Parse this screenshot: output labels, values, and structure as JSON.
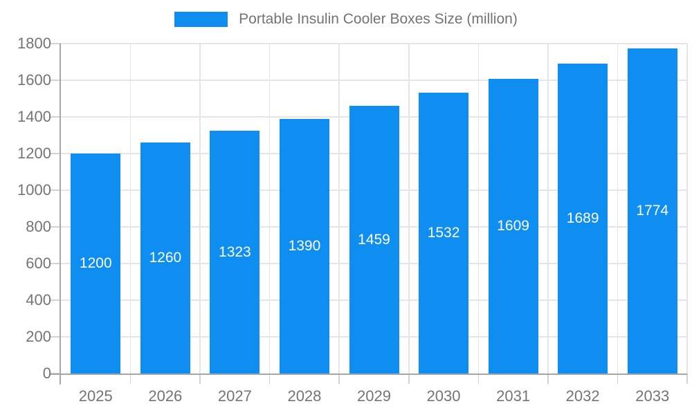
{
  "chart_data": {
    "type": "bar",
    "title": "Portable Insulin Cooler Boxes Size (million)",
    "categories": [
      "2025",
      "2026",
      "2027",
      "2028",
      "2029",
      "2030",
      "2031",
      "2032",
      "2033"
    ],
    "values": [
      1200,
      1260,
      1323,
      1390,
      1459,
      1532,
      1609,
      1689,
      1774
    ],
    "value_labels": [
      "1200",
      "1260",
      "1323",
      "1390",
      "1459",
      "1532",
      "1609",
      "1689",
      "1774"
    ],
    "ylim": [
      0,
      1800
    ],
    "ytick_step": 200,
    "ytick_labels": [
      "0",
      "200",
      "400",
      "600",
      "800",
      "1000",
      "1200",
      "1400",
      "1600",
      "1800"
    ],
    "legend_position": "top",
    "grid": "on",
    "colors": {
      "bar": "#0d8ef0",
      "bar_value_text": "#ffffff",
      "axis": "#a6a6a6",
      "gridline": "#e5e5e5",
      "tick": "#d2d2d2",
      "label_text": "#747474"
    }
  }
}
